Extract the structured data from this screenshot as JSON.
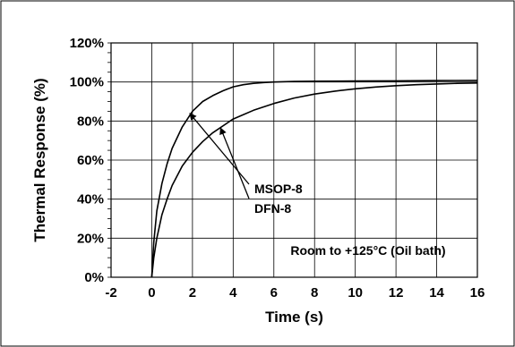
{
  "chart_data": {
    "type": "line",
    "title": "",
    "xlabel": "Time (s)",
    "ylabel": "Thermal Response (%)",
    "xlim": [
      -2,
      16
    ],
    "ylim": [
      0,
      120
    ],
    "x_ticks": [
      "-2",
      "0",
      "2",
      "4",
      "6",
      "8",
      "10",
      "12",
      "14",
      "16"
    ],
    "y_ticks": [
      "0%",
      "20%",
      "40%",
      "60%",
      "80%",
      "100%",
      "120%"
    ],
    "grid": true,
    "annotation": "Room to +125°C (Oil bath)",
    "series": [
      {
        "name": "MSOP-8",
        "x": [
          0,
          0.1,
          0.25,
          0.5,
          0.75,
          1,
          1.5,
          2,
          2.5,
          3,
          3.5,
          4,
          4.5,
          5,
          5.5,
          6,
          7,
          8,
          10,
          12,
          14,
          16
        ],
        "y": [
          0,
          18,
          34,
          48,
          58,
          66,
          77,
          85,
          90,
          93,
          95.5,
          97.5,
          98.6,
          99.3,
          99.7,
          100,
          100.3,
          100.4,
          100.5,
          100.6,
          100.7,
          100.8
        ]
      },
      {
        "name": "DFN-8",
        "x": [
          0,
          0.1,
          0.25,
          0.5,
          0.75,
          1,
          1.5,
          2,
          2.5,
          3,
          4,
          5,
          6,
          7,
          8,
          9,
          10,
          11,
          12,
          13,
          14,
          15,
          16
        ],
        "y": [
          0,
          10,
          20,
          32,
          40,
          47,
          57,
          64,
          69.5,
          74,
          81,
          85.5,
          89,
          91.8,
          93.8,
          95.3,
          96.5,
          97.4,
          98.1,
          98.6,
          99,
          99.3,
          99.5
        ]
      }
    ],
    "series_labels": [
      {
        "text": "MSOP-8",
        "points_to": {
          "x": 1.9,
          "y": 83.5
        }
      },
      {
        "text": "DFN-8",
        "points_to": {
          "x": 3.4,
          "y": 76
        }
      }
    ]
  }
}
